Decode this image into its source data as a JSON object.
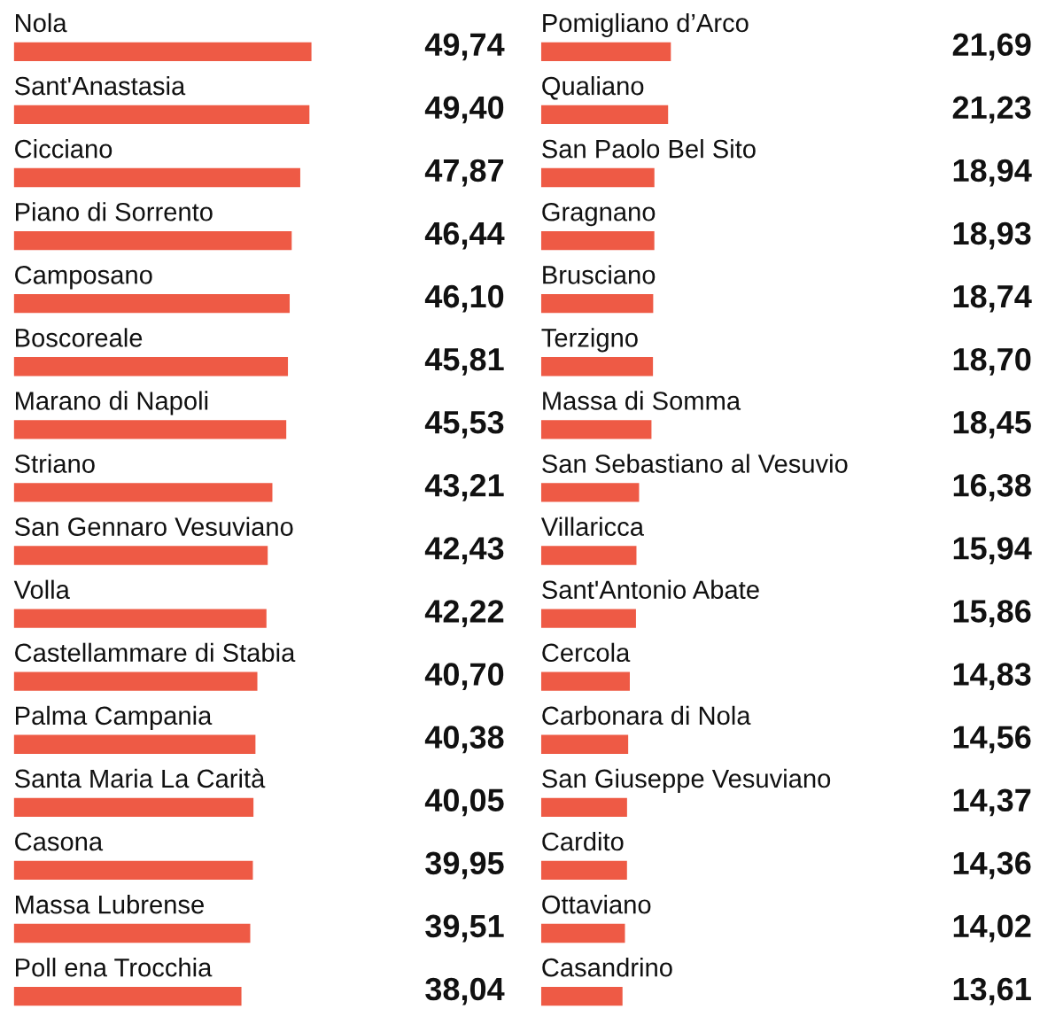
{
  "chart_data": [
    {
      "type": "bar",
      "orientation": "horizontal",
      "color": "#ee5a45",
      "categories": [
        "Nola",
        "Sant'Anastasia",
        "Cicciano",
        "Piano di Sorrento",
        "Camposano",
        "Boscoreale",
        "Marano di Napoli",
        "Striano",
        "San Gennaro Vesuviano",
        "Volla",
        "Castellammare di Stabia",
        "Palma Campania",
        "Santa Maria La Carità",
        "Casona",
        "Massa Lubrense",
        "Poll ena Trocchia"
      ],
      "values": [
        49.74,
        49.4,
        47.87,
        46.44,
        46.1,
        45.81,
        45.53,
        43.21,
        42.43,
        42.22,
        40.7,
        40.38,
        40.05,
        39.95,
        39.51,
        38.04
      ],
      "value_labels": [
        "49,74",
        "49,40",
        "47,87",
        "46,44",
        "46,10",
        "45,81",
        "45,53",
        "43,21",
        "42,43",
        "42,22",
        "40,70",
        "40,38",
        "40,05",
        "39,95",
        "39,51",
        "38,04"
      ]
    },
    {
      "type": "bar",
      "orientation": "horizontal",
      "color": "#ee5a45",
      "categories": [
        "Pomigliano d’Arco",
        "Qualiano",
        "San Paolo Bel Sito",
        "Gragnano",
        "Brusciano",
        "Terzigno",
        "Massa di Somma",
        "San Sebastiano al Vesuvio",
        "Villaricca",
        "Sant'Antonio Abate",
        "Cercola",
        "Carbonara di Nola",
        "San Giuseppe Vesuviano",
        "Cardito",
        "Ottaviano",
        "Casandrino"
      ],
      "values": [
        21.69,
        21.23,
        18.94,
        18.93,
        18.74,
        18.7,
        18.45,
        16.38,
        15.94,
        15.86,
        14.83,
        14.56,
        14.37,
        14.36,
        14.02,
        13.61
      ],
      "value_labels": [
        "21,69",
        "21,23",
        "18,94",
        "18,93",
        "18,74",
        "18,70",
        "18,45",
        "16,38",
        "15,94",
        "15,86",
        "14,83",
        "14,56",
        "14,37",
        "14,36",
        "14,02",
        "13,61"
      ]
    }
  ]
}
